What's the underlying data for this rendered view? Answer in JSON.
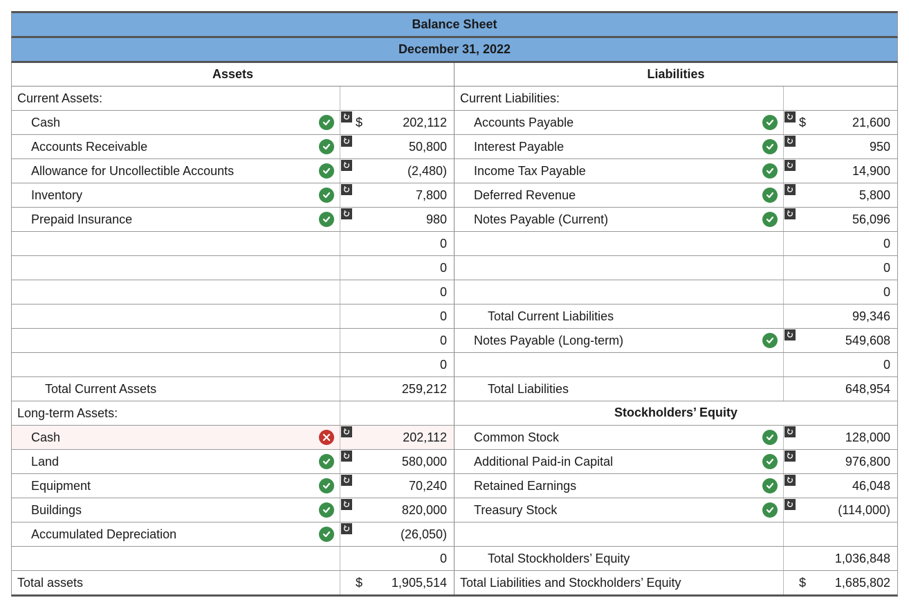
{
  "title": "Balance Sheet",
  "date": "December 31, 2022",
  "left_header": "Assets",
  "right_header": "Liabilities",
  "equity_header": "Stockholders’ Equity",
  "colors": {
    "header_bg": "#78aadc",
    "ok": "#3b8f4a",
    "bad": "#c5342e",
    "error_bg": "#fdf3f3",
    "border": "#999999",
    "text": "#1a1a1a"
  },
  "rows": [
    {
      "left": {
        "label": "Current Assets:",
        "indent": 0,
        "status": "",
        "reset": false,
        "value": "",
        "dollar": false
      },
      "right": {
        "label": "Current Liabilities:",
        "indent": 0,
        "status": "",
        "reset": false,
        "value": "",
        "dollar": false
      }
    },
    {
      "left": {
        "label": "Cash",
        "indent": 1,
        "status": "ok",
        "reset": true,
        "value": "202,112",
        "dollar": true
      },
      "right": {
        "label": "Accounts Payable",
        "indent": 1,
        "status": "ok",
        "reset": true,
        "value": "21,600",
        "dollar": true
      }
    },
    {
      "left": {
        "label": "Accounts Receivable",
        "indent": 1,
        "status": "ok",
        "reset": true,
        "value": "50,800",
        "dollar": false
      },
      "right": {
        "label": "Interest Payable",
        "indent": 1,
        "status": "ok",
        "reset": true,
        "value": "950",
        "dollar": false
      }
    },
    {
      "left": {
        "label": "Allowance for Uncollectible Accounts",
        "indent": 1,
        "status": "ok",
        "reset": true,
        "value": "(2,480)",
        "dollar": false
      },
      "right": {
        "label": "Income Tax Payable",
        "indent": 1,
        "status": "ok",
        "reset": true,
        "value": "14,900",
        "dollar": false
      }
    },
    {
      "left": {
        "label": "Inventory",
        "indent": 1,
        "status": "ok",
        "reset": true,
        "value": "7,800",
        "dollar": false
      },
      "right": {
        "label": "Deferred Revenue",
        "indent": 1,
        "status": "ok",
        "reset": true,
        "value": "5,800",
        "dollar": false
      }
    },
    {
      "left": {
        "label": "Prepaid Insurance",
        "indent": 1,
        "status": "ok",
        "reset": true,
        "value": "980",
        "dollar": false
      },
      "right": {
        "label": "Notes Payable (Current)",
        "indent": 1,
        "status": "ok",
        "reset": true,
        "value": "56,096",
        "dollar": false
      }
    },
    {
      "left": {
        "label": "",
        "indent": 0,
        "status": "",
        "reset": false,
        "value": "0",
        "dollar": false
      },
      "right": {
        "label": "",
        "indent": 0,
        "status": "",
        "reset": false,
        "value": "0",
        "dollar": false
      }
    },
    {
      "left": {
        "label": "",
        "indent": 0,
        "status": "",
        "reset": false,
        "value": "0",
        "dollar": false
      },
      "right": {
        "label": "",
        "indent": 0,
        "status": "",
        "reset": false,
        "value": "0",
        "dollar": false
      }
    },
    {
      "left": {
        "label": "",
        "indent": 0,
        "status": "",
        "reset": false,
        "value": "0",
        "dollar": false
      },
      "right": {
        "label": "",
        "indent": 0,
        "status": "",
        "reset": false,
        "value": "0",
        "dollar": false
      }
    },
    {
      "left": {
        "label": "",
        "indent": 0,
        "status": "",
        "reset": false,
        "value": "0",
        "dollar": false
      },
      "right": {
        "label": "Total Current Liabilities",
        "indent": 2,
        "status": "",
        "reset": false,
        "value": "99,346",
        "dollar": false
      }
    },
    {
      "left": {
        "label": "",
        "indent": 0,
        "status": "",
        "reset": false,
        "value": "0",
        "dollar": false
      },
      "right": {
        "label": "Notes Payable (Long-term)",
        "indent": 1,
        "status": "ok",
        "reset": true,
        "value": "549,608",
        "dollar": false
      }
    },
    {
      "left": {
        "label": "",
        "indent": 0,
        "status": "",
        "reset": false,
        "value": "0",
        "dollar": false
      },
      "right": {
        "label": "",
        "indent": 0,
        "status": "",
        "reset": false,
        "value": "0",
        "dollar": false
      }
    },
    {
      "left": {
        "label": "Total Current Assets",
        "indent": 2,
        "status": "",
        "reset": false,
        "value": "259,212",
        "dollar": false
      },
      "right": {
        "label": "Total Liabilities",
        "indent": 2,
        "status": "",
        "reset": false,
        "value": "648,954",
        "dollar": false
      }
    },
    {
      "left": {
        "label": "Long-term Assets:",
        "indent": 0,
        "status": "",
        "reset": false,
        "value": "",
        "dollar": false
      },
      "right": {
        "type": "equity_header"
      }
    },
    {
      "left": {
        "label": "Cash",
        "indent": 1,
        "status": "bad",
        "reset": true,
        "value": "202,112",
        "dollar": false,
        "error": true
      },
      "right": {
        "label": "Common Stock",
        "indent": 1,
        "status": "ok",
        "reset": true,
        "value": "128,000",
        "dollar": false
      }
    },
    {
      "left": {
        "label": "Land",
        "indent": 1,
        "status": "ok",
        "reset": true,
        "value": "580,000",
        "dollar": false
      },
      "right": {
        "label": "Additional Paid-in Capital",
        "indent": 1,
        "status": "ok",
        "reset": true,
        "value": "976,800",
        "dollar": false
      }
    },
    {
      "left": {
        "label": "Equipment",
        "indent": 1,
        "status": "ok",
        "reset": true,
        "value": "70,240",
        "dollar": false
      },
      "right": {
        "label": "Retained Earnings",
        "indent": 1,
        "status": "ok",
        "reset": true,
        "value": "46,048",
        "dollar": false
      }
    },
    {
      "left": {
        "label": "Buildings",
        "indent": 1,
        "status": "ok",
        "reset": true,
        "value": "820,000",
        "dollar": false
      },
      "right": {
        "label": "Treasury Stock",
        "indent": 1,
        "status": "ok",
        "reset": true,
        "value": "(114,000)",
        "dollar": false
      }
    },
    {
      "left": {
        "label": "Accumulated Depreciation",
        "indent": 1,
        "status": "ok",
        "reset": true,
        "value": "(26,050)",
        "dollar": false
      },
      "right": {
        "label": "",
        "indent": 0,
        "status": "",
        "reset": false,
        "value": "",
        "dollar": false
      }
    },
    {
      "left": {
        "label": "",
        "indent": 0,
        "status": "",
        "reset": false,
        "value": "0",
        "dollar": false
      },
      "right": {
        "label": "Total Stockholders’ Equity",
        "indent": 2,
        "status": "",
        "reset": false,
        "value": "1,036,848",
        "dollar": false
      }
    },
    {
      "left": {
        "label": "Total assets",
        "indent": 0,
        "status": "",
        "reset": false,
        "value": "1,905,514",
        "dollar": true,
        "final": true
      },
      "right": {
        "label": "Total Liabilities and Stockholders’ Equity",
        "indent": 0,
        "status": "",
        "reset": false,
        "value": "1,685,802",
        "dollar": true,
        "final": true
      }
    }
  ]
}
